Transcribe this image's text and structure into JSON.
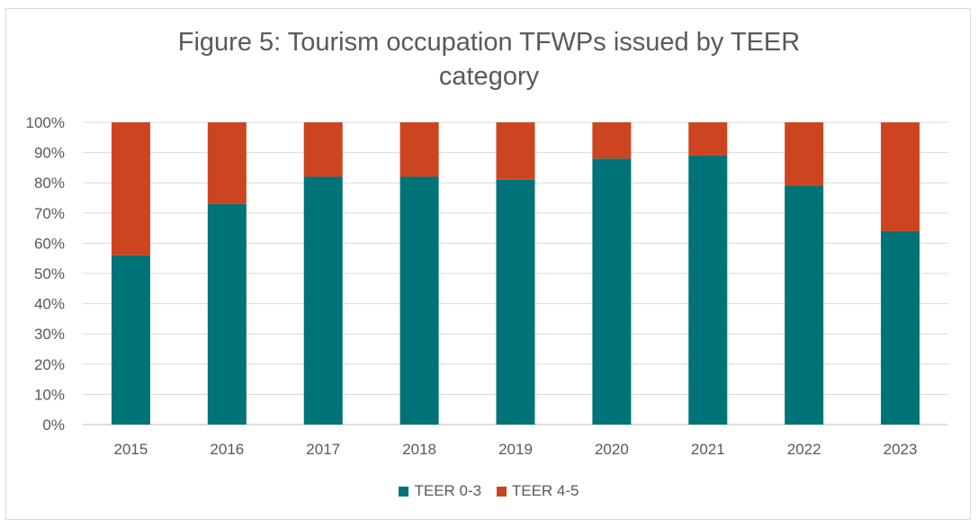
{
  "chart_data": {
    "type": "bar",
    "stacked": true,
    "title": "Figure 5: Tourism occupation TFWPs issued by TEER category",
    "title_lines": [
      "Figure 5: Tourism occupation TFWPs issued by TEER",
      "category"
    ],
    "xlabel": "",
    "ylabel": "",
    "categories": [
      "2015",
      "2016",
      "2017",
      "2018",
      "2019",
      "2020",
      "2021",
      "2022",
      "2023"
    ],
    "series": [
      {
        "name": "TEER 0-3",
        "color": "#007378",
        "values": [
          56,
          73,
          82,
          82,
          81,
          88,
          89,
          79,
          64
        ]
      },
      {
        "name": "TEER 4-5",
        "color": "#cc4520",
        "values": [
          44,
          27,
          18,
          18,
          19,
          12,
          11,
          21,
          36
        ]
      }
    ],
    "ylim": [
      0,
      100
    ],
    "yticks": [
      "0%",
      "10%",
      "20%",
      "30%",
      "40%",
      "50%",
      "60%",
      "70%",
      "80%",
      "90%",
      "100%"
    ],
    "grid": true,
    "legend_position": "bottom"
  }
}
